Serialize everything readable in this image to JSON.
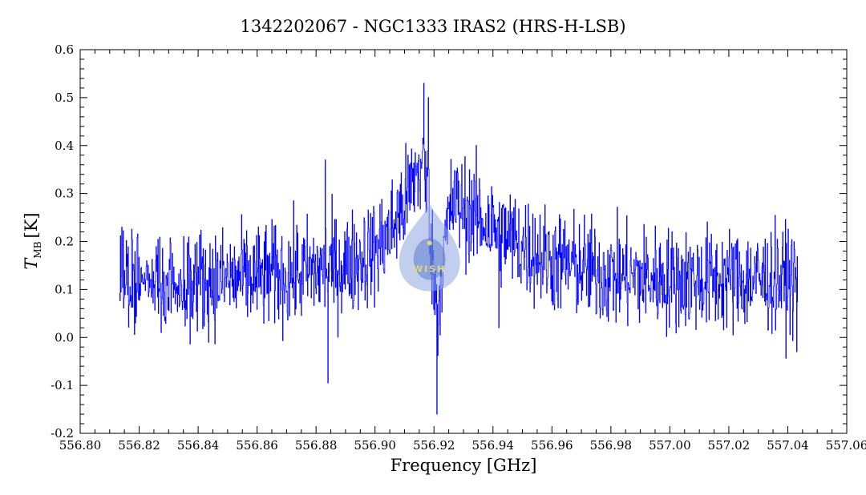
{
  "chart_data": {
    "type": "line",
    "title": "1342202067 - NGC1333 IRAS2 (HRS-H-LSB)",
    "xlabel": "Frequency [GHz]",
    "ylabel": {
      "main": "T",
      "sub": "MB",
      "unit": "[K]"
    },
    "xlim": [
      556.8,
      557.06
    ],
    "ylim": [
      -0.2,
      0.6
    ],
    "x_ticks": [
      "556.80",
      "556.82",
      "556.84",
      "556.86",
      "556.88",
      "556.90",
      "556.92",
      "556.94",
      "556.96",
      "556.98",
      "557.00",
      "557.02",
      "557.04",
      "557.06"
    ],
    "y_ticks": [
      "-0.2",
      "-0.1",
      "0.0",
      "0.1",
      "0.2",
      "0.3",
      "0.4",
      "0.5",
      "0.6"
    ],
    "x_tick_values": [
      556.8,
      556.82,
      556.84,
      556.86,
      556.88,
      556.9,
      556.92,
      556.94,
      556.96,
      556.98,
      557.0,
      557.02,
      557.04,
      557.06
    ],
    "y_tick_values": [
      -0.2,
      -0.1,
      0.0,
      0.1,
      0.2,
      0.3,
      0.4,
      0.5,
      0.6
    ],
    "grid": false,
    "series": [
      {
        "color": "#0000ff",
        "x_range": [
          556.8133,
          557.0433
        ],
        "envelope": {
          "x": [
            556.8133,
            556.83,
            556.85,
            556.87,
            556.89,
            556.9,
            556.905,
            556.91,
            556.913,
            556.916,
            556.918,
            556.9195,
            556.921,
            556.923,
            556.926,
            556.93,
            556.935,
            556.94,
            556.95,
            556.96,
            556.98,
            557.0,
            557.02,
            557.0433
          ],
          "y": [
            0.12,
            0.12,
            0.12,
            0.13,
            0.15,
            0.18,
            0.22,
            0.28,
            0.33,
            0.36,
            0.3,
            0.15,
            0.05,
            0.17,
            0.28,
            0.27,
            0.25,
            0.23,
            0.19,
            0.16,
            0.13,
            0.12,
            0.12,
            0.12
          ]
        },
        "noise_rms": 0.055,
        "notable_points": [
          {
            "x": 556.9165,
            "y": 0.53
          },
          {
            "x": 556.918,
            "y": 0.5
          },
          {
            "x": 556.921,
            "y": -0.16
          },
          {
            "x": 556.884,
            "y": -0.095
          },
          {
            "x": 556.883,
            "y": 0.37
          },
          {
            "x": 556.942,
            "y": 0.02
          },
          {
            "x": 556.814,
            "y": 0.23
          },
          {
            "x": 557.043,
            "y": -0.03
          }
        ]
      }
    ],
    "watermark": {
      "text": "WISH",
      "colors": {
        "outer": "#8ea6df",
        "inner": "#4a6cc8",
        "text": "#f1e06a"
      }
    }
  }
}
